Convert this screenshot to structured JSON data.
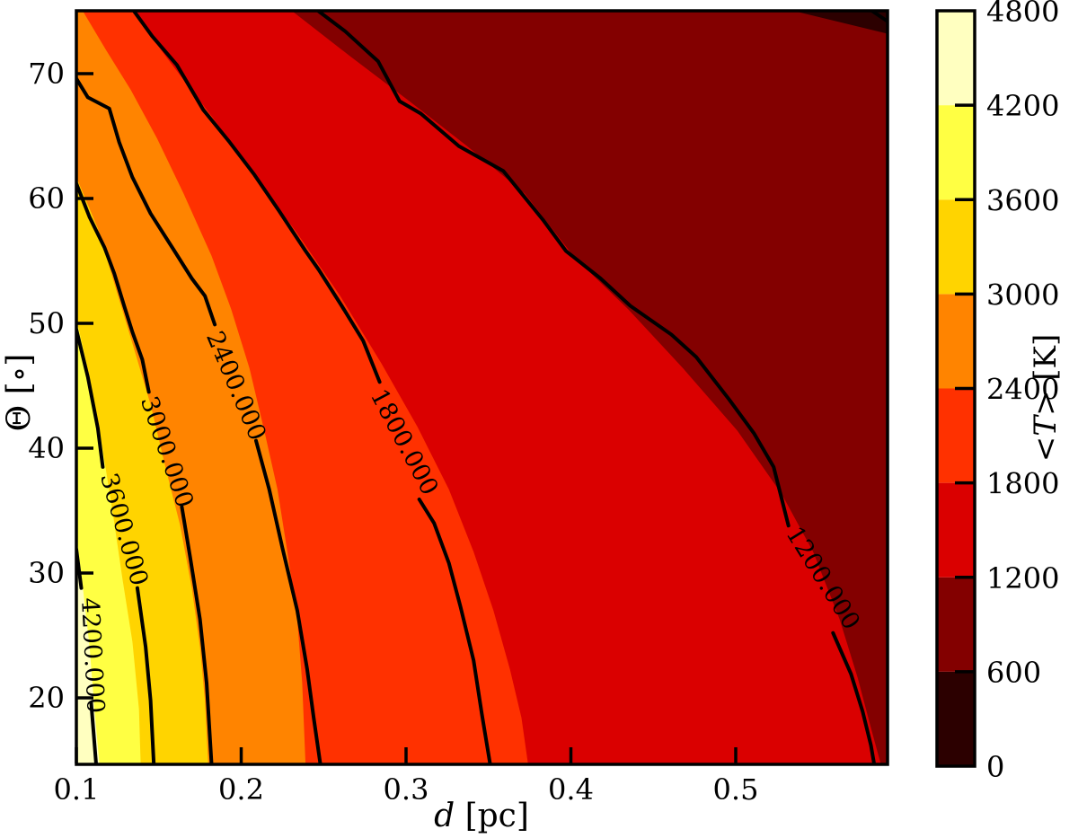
{
  "figure": {
    "background": "#FFFFFF",
    "frame_color": "#000000"
  },
  "chart_data": {
    "type": "contour",
    "title": "",
    "x_axis": {
      "label_var": "d",
      "label_unit": " [pc]",
      "ticks": [
        0.1,
        0.2,
        0.3,
        0.4,
        0.5
      ],
      "tick_labels": [
        "0.1",
        "0.2",
        "0.3",
        "0.4",
        "0.5"
      ],
      "range": [
        0.1,
        0.592
      ]
    },
    "y_axis": {
      "label_sym": "Θ",
      "label_unit": " [∘]",
      "ticks": [
        20,
        30,
        40,
        50,
        60,
        70
      ],
      "tick_labels": [
        "20",
        "30",
        "40",
        "50",
        "60",
        "70"
      ],
      "range": [
        14.7,
        75.0
      ]
    },
    "colorbar": {
      "label_pre": "<",
      "label_var": "T",
      "label_post": ">",
      "label_unit": " [K]",
      "levels": [
        0,
        600,
        1200,
        1800,
        2400,
        3000,
        3600,
        4200,
        4800
      ],
      "tick_labels": [
        "0",
        "600",
        "1200",
        "1800",
        "2400",
        "3000",
        "3600",
        "4200",
        "4800"
      ],
      "colors": [
        "#2C0000",
        "#830000",
        "#DA0000",
        "#FF3100",
        "#FF8400",
        "#FFD400",
        "#FFFF43",
        "#FFFFC0"
      ]
    },
    "line_color": "#000000",
    "line_width": 4,
    "bands": [
      {
        "min": 4200,
        "max": 4800,
        "color": "#FFFFC0",
        "base": true
      },
      {
        "min": 3600,
        "max": 4200,
        "color": "#FFFF43",
        "boundary": [
          [
            0.1,
            33.1
          ],
          [
            0.104,
            28.8
          ],
          [
            0.108,
            24.1
          ],
          [
            0.111,
            19.1
          ],
          [
            0.114,
            14.7
          ]
        ]
      },
      {
        "min": 3000,
        "max": 3600,
        "color": "#FFD400",
        "boundary": [
          [
            0.1,
            50.4
          ],
          [
            0.108,
            45.7
          ],
          [
            0.115,
            40.7
          ],
          [
            0.122,
            34.9
          ],
          [
            0.128,
            29.5
          ],
          [
            0.134,
            24.5
          ],
          [
            0.138,
            19.1
          ],
          [
            0.139,
            14.7
          ]
        ]
      },
      {
        "min": 2400,
        "max": 3000,
        "color": "#FF8400",
        "boundary": [
          [
            0.1,
            61.7
          ],
          [
            0.113,
            57.6
          ],
          [
            0.123,
            53.2
          ],
          [
            0.134,
            48.4
          ],
          [
            0.145,
            43.5
          ],
          [
            0.154,
            38.5
          ],
          [
            0.163,
            33.8
          ],
          [
            0.17,
            28.8
          ],
          [
            0.175,
            24.1
          ],
          [
            0.178,
            19.8
          ],
          [
            0.18,
            14.7
          ]
        ]
      },
      {
        "min": 1800,
        "max": 2400,
        "color": "#FF3100",
        "boundary": [
          [
            0.104,
            75.0
          ],
          [
            0.118,
            71.9
          ],
          [
            0.133,
            68.7
          ],
          [
            0.149,
            64.8
          ],
          [
            0.165,
            60.4
          ],
          [
            0.182,
            55.4
          ],
          [
            0.194,
            51.1
          ],
          [
            0.205,
            46.4
          ],
          [
            0.214,
            41.4
          ],
          [
            0.222,
            36.7
          ],
          [
            0.228,
            31.7
          ],
          [
            0.234,
            26.3
          ],
          [
            0.237,
            21.2
          ],
          [
            0.239,
            14.7
          ]
        ]
      },
      {
        "min": 1200,
        "max": 1800,
        "color": "#DA0000",
        "boundary": [
          [
            0.134,
            75.0
          ],
          [
            0.157,
            70.9
          ],
          [
            0.182,
            66.6
          ],
          [
            0.206,
            62.2
          ],
          [
            0.234,
            57.2
          ],
          [
            0.26,
            52.2
          ],
          [
            0.285,
            46.8
          ],
          [
            0.307,
            41.7
          ],
          [
            0.326,
            36.7
          ],
          [
            0.341,
            31.7
          ],
          [
            0.353,
            27.0
          ],
          [
            0.363,
            22.3
          ],
          [
            0.37,
            18.4
          ],
          [
            0.374,
            14.7
          ]
        ]
      },
      {
        "min": 600,
        "max": 1200,
        "color": "#830000",
        "boundary": [
          [
            0.231,
            75.0
          ],
          [
            0.266,
            71.4
          ],
          [
            0.302,
            67.8
          ],
          [
            0.337,
            64.2
          ],
          [
            0.372,
            60.4
          ],
          [
            0.402,
            55.3
          ],
          [
            0.435,
            51.1
          ],
          [
            0.468,
            46.4
          ],
          [
            0.501,
            41.4
          ],
          [
            0.528,
            36.3
          ],
          [
            0.547,
            31.7
          ],
          [
            0.563,
            26.3
          ],
          [
            0.574,
            21.6
          ],
          [
            0.582,
            17.6
          ],
          [
            0.588,
            14.7
          ]
        ]
      },
      {
        "min": 0,
        "max": 600,
        "color": "#2C0000",
        "closed": true,
        "boundary": [
          [
            0.536,
            75.0
          ],
          [
            0.592,
            75.0
          ],
          [
            0.592,
            73.2
          ]
        ]
      }
    ],
    "contour_lines": [
      {
        "level": 600,
        "label": "",
        "segments": [
          [
            [
              0.583,
              75.0
            ],
            [
              0.592,
              74.2
            ]
          ]
        ],
        "label_pos": null,
        "label_rot": 0
      },
      {
        "level": 1200,
        "label": "1200.000",
        "segments": [
          [
            [
              0.247,
              75.0
            ],
            [
              0.263,
              73.4
            ],
            [
              0.278,
              71.6
            ],
            [
              0.283,
              71.0
            ],
            [
              0.296,
              67.8
            ],
            [
              0.309,
              66.8
            ],
            [
              0.332,
              64.2
            ],
            [
              0.359,
              62.2
            ],
            [
              0.383,
              58.3
            ],
            [
              0.397,
              55.8
            ],
            [
              0.418,
              53.6
            ],
            [
              0.436,
              51.4
            ],
            [
              0.461,
              49.1
            ],
            [
              0.476,
              47.3
            ],
            [
              0.496,
              43.9
            ],
            [
              0.511,
              41.2
            ],
            [
              0.523,
              38.5
            ],
            [
              0.532,
              33.8
            ]
          ],
          [
            [
              0.559,
              25.2
            ],
            [
              0.57,
              21.9
            ],
            [
              0.577,
              18.9
            ],
            [
              0.582,
              16.2
            ],
            [
              0.584,
              14.7
            ]
          ]
        ],
        "label_pos": [
          0.553,
          29.6
        ],
        "label_rot": 58
      },
      {
        "level": 1800,
        "label": "1800.000",
        "segments": [
          [
            [
              0.135,
              75.0
            ],
            [
              0.146,
              73.0
            ],
            [
              0.161,
              70.7
            ],
            [
              0.177,
              67.1
            ],
            [
              0.193,
              64.5
            ],
            [
              0.208,
              61.9
            ],
            [
              0.223,
              59.0
            ],
            [
              0.239,
              55.8
            ],
            [
              0.247,
              54.3
            ],
            [
              0.261,
              51.4
            ],
            [
              0.274,
              48.6
            ],
            [
              0.284,
              45.3
            ]
          ],
          [
            [
              0.308,
              35.9
            ],
            [
              0.317,
              34.0
            ],
            [
              0.326,
              30.8
            ],
            [
              0.333,
              27.3
            ],
            [
              0.341,
              23.0
            ],
            [
              0.346,
              18.7
            ],
            [
              0.351,
              14.7
            ]
          ]
        ],
        "label_pos": [
          0.299,
          40.5
        ],
        "label_rot": 62
      },
      {
        "level": 2400,
        "label": "2400.000",
        "segments": [
          [
            [
              0.1,
              69.6
            ],
            [
              0.107,
              68.1
            ],
            [
              0.12,
              67.2
            ],
            [
              0.126,
              64.5
            ],
            [
              0.134,
              61.7
            ],
            [
              0.145,
              58.8
            ],
            [
              0.159,
              55.9
            ],
            [
              0.17,
              53.6
            ],
            [
              0.178,
              52.2
            ],
            [
              0.184,
              49.9
            ]
          ],
          [
            [
              0.209,
              40.6
            ],
            [
              0.217,
              36.7
            ],
            [
              0.225,
              32.0
            ],
            [
              0.234,
              27.0
            ],
            [
              0.24,
              22.3
            ],
            [
              0.244,
              18.4
            ],
            [
              0.248,
              14.7
            ]
          ]
        ],
        "label_pos": [
          0.197,
          45.0
        ],
        "label_rot": 67
      },
      {
        "level": 3000,
        "label": "3000.000",
        "segments": [
          [
            [
              0.1,
              61.2
            ],
            [
              0.108,
              58.5
            ],
            [
              0.117,
              56.1
            ],
            [
              0.123,
              54.0
            ],
            [
              0.129,
              51.4
            ],
            [
              0.134,
              49.3
            ],
            [
              0.14,
              47.1
            ],
            [
              0.144,
              44.5
            ]
          ],
          [
            [
              0.164,
              35.3
            ],
            [
              0.169,
              31.3
            ],
            [
              0.175,
              26.3
            ],
            [
              0.179,
              21.2
            ],
            [
              0.182,
              14.7
            ]
          ]
        ],
        "label_pos": [
          0.155,
          39.7
        ],
        "label_rot": 71
      },
      {
        "level": 3600,
        "label": "3600.000",
        "segments": [
          [
            [
              0.1,
              49.5
            ],
            [
              0.107,
              45.7
            ],
            [
              0.113,
              41.6
            ],
            [
              0.116,
              38.5
            ]
          ],
          [
            [
              0.137,
              28.8
            ],
            [
              0.142,
              24.1
            ],
            [
              0.145,
              19.8
            ],
            [
              0.147,
              14.7
            ]
          ]
        ],
        "label_pos": [
          0.129,
          33.5
        ],
        "label_rot": 74
      },
      {
        "level": 4200,
        "label": "4200.000",
        "segments": [
          [
            [
              0.1,
              31.9
            ],
            [
              0.103,
              28.8
            ]
          ],
          [
            [
              0.109,
              19.6
            ],
            [
              0.112,
              14.7
            ]
          ]
        ],
        "label_pos": [
          0.11,
          23.4
        ],
        "label_rot": 87
      }
    ]
  }
}
